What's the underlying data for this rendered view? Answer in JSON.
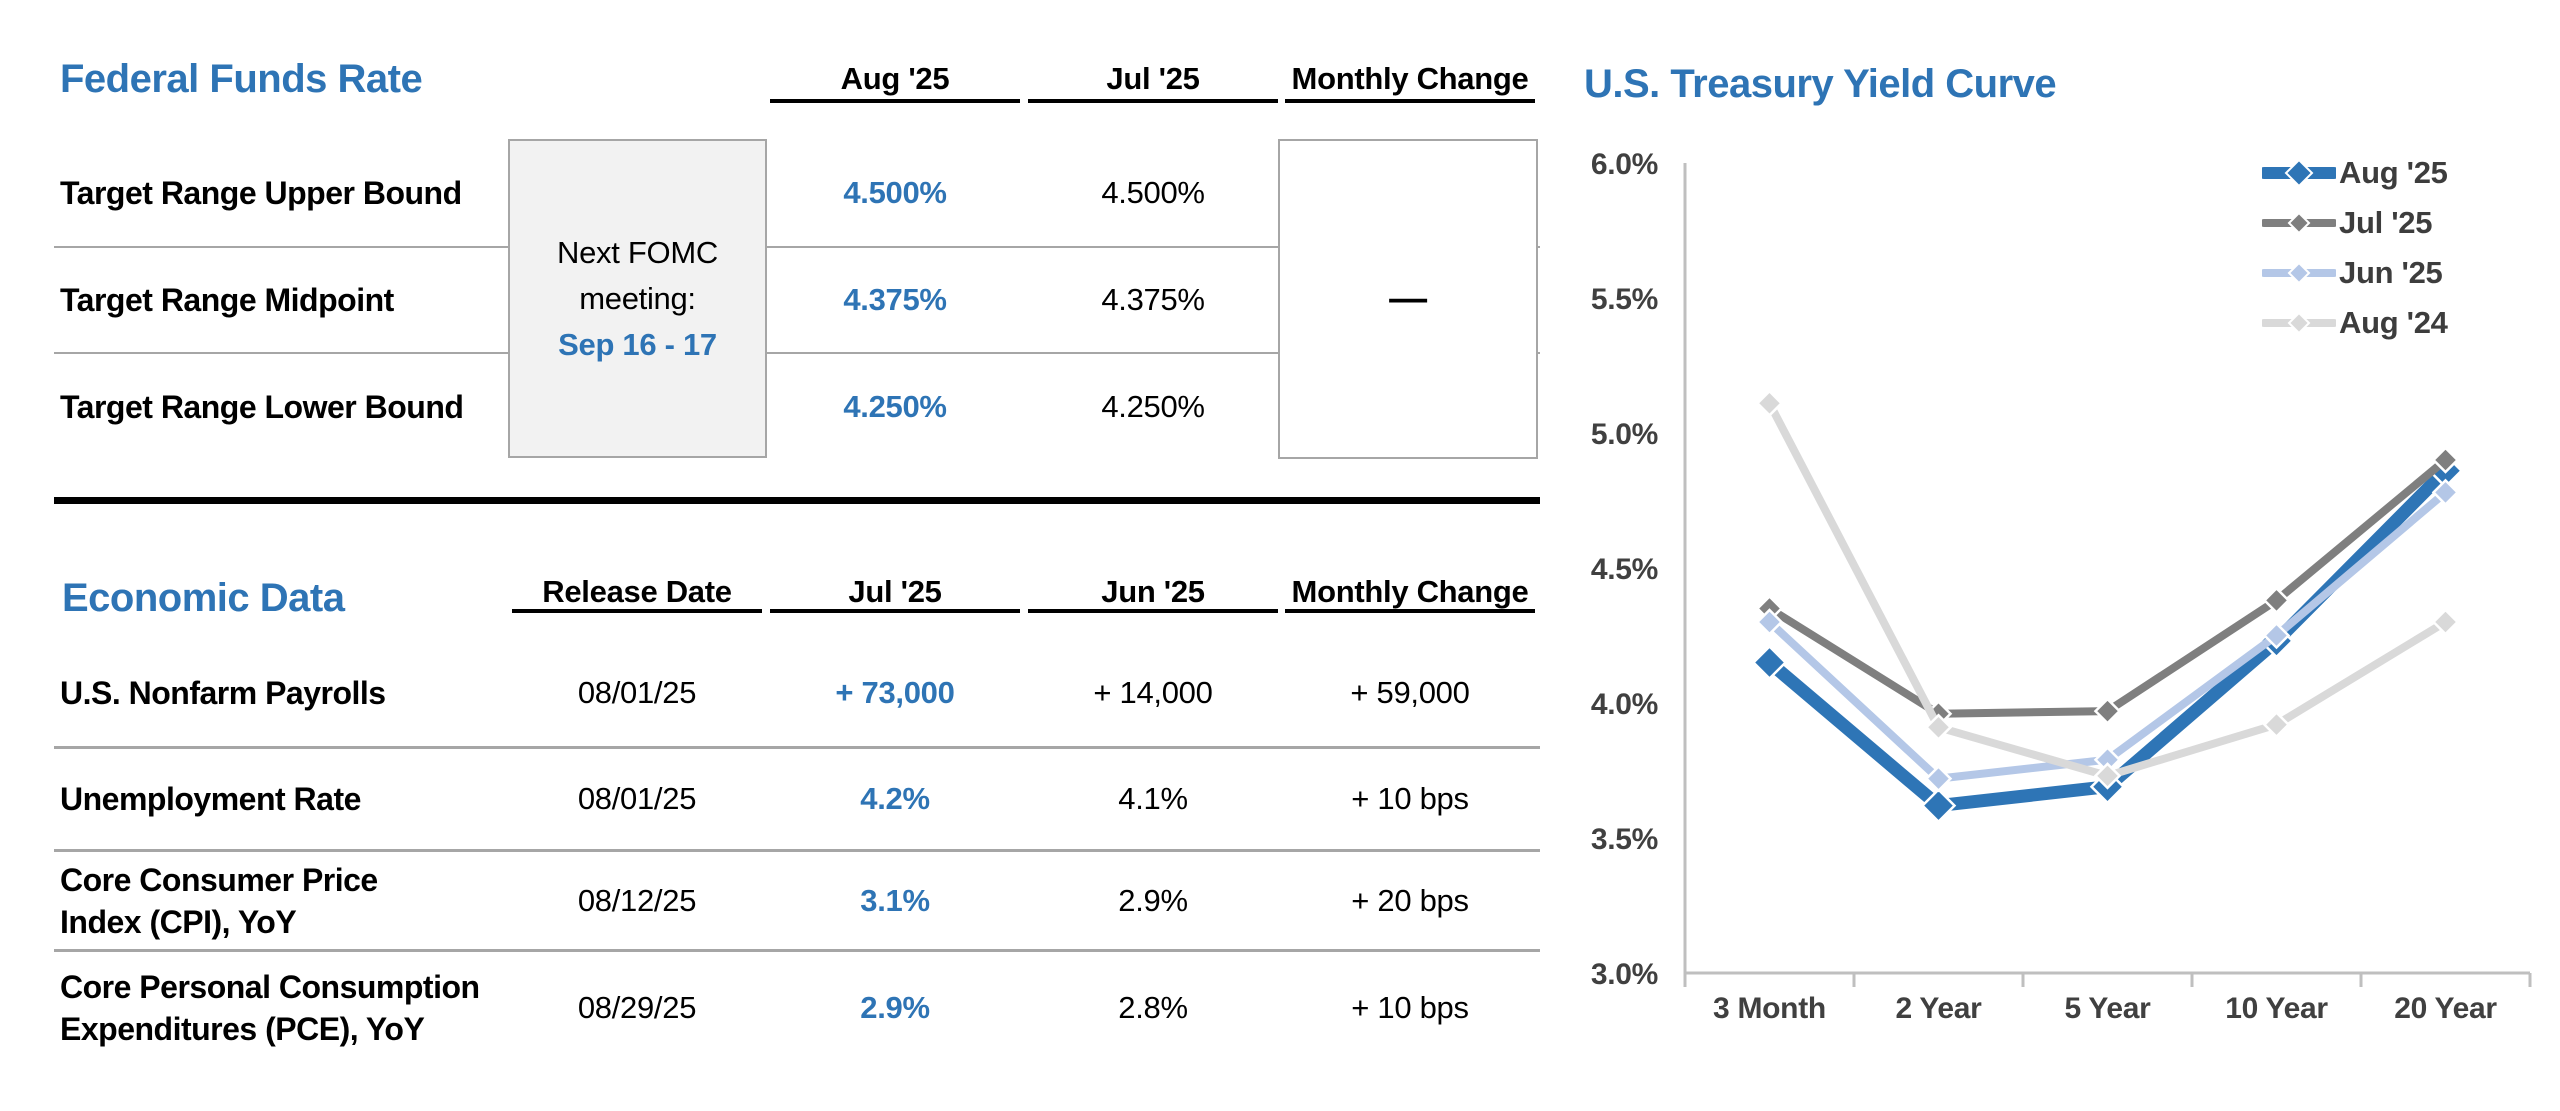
{
  "colors": {
    "accent_blue": "#2e74b5",
    "divider_gray": "#a6a6a6",
    "box_border": "#a6a6a6",
    "box_fill": "#f2f2f2",
    "axis_gray": "#bfbfbf",
    "tick_text": "#404040"
  },
  "fed_funds": {
    "title": "Federal Funds Rate",
    "columns": [
      "Aug '25",
      "Jul '25",
      "Monthly Change"
    ],
    "rows": [
      {
        "label": "Target Range Upper Bound",
        "aug25": "4.500%",
        "jul25": "4.500%"
      },
      {
        "label": "Target Range Midpoint",
        "aug25": "4.375%",
        "jul25": "4.375%"
      },
      {
        "label": "Target Range Lower Bound",
        "aug25": "4.250%",
        "jul25": "4.250%"
      }
    ],
    "monthly_change": "—",
    "fomc_note": {
      "line1": "Next FOMC",
      "line2": "meeting:",
      "dates": "Sep 16 - 17"
    }
  },
  "economic_data": {
    "title": "Economic Data",
    "columns": [
      "Release Date",
      "Jul '25",
      "Jun '25",
      "Monthly Change"
    ],
    "rows": [
      {
        "label": "U.S. Nonfarm Payrolls",
        "label2": "",
        "release": "08/01/25",
        "jul25": "+ 73,000",
        "jun25": "+ 14,000",
        "change": "+ 59,000"
      },
      {
        "label": "Unemployment Rate",
        "label2": "",
        "release": "08/01/25",
        "jul25": "4.2%",
        "jun25": "4.1%",
        "change": "+ 10 bps"
      },
      {
        "label": "Core Consumer Price",
        "label2": "Index (CPI), YoY",
        "release": "08/12/25",
        "jul25": "3.1%",
        "jun25": "2.9%",
        "change": "+ 20 bps"
      },
      {
        "label": "Core Personal Consumption",
        "label2": "Expenditures (PCE), YoY",
        "release": "08/29/25",
        "jul25": "2.9%",
        "jun25": "2.8%",
        "change": "+ 10 bps"
      }
    ]
  },
  "chart_data": {
    "type": "line",
    "title": "U.S. Treasury Yield Curve",
    "categories": [
      "3 Month",
      "2 Year",
      "5 Year",
      "10 Year",
      "20 Year"
    ],
    "series": [
      {
        "name": "Aug '25",
        "color": "#2e75b6",
        "values": [
          4.15,
          3.62,
          3.69,
          4.23,
          4.86
        ]
      },
      {
        "name": "Jul '25",
        "color": "#7f7f7f",
        "values": [
          4.35,
          3.96,
          3.97,
          4.38,
          4.9
        ]
      },
      {
        "name": "Jun '25",
        "color": "#b4c7e7",
        "values": [
          4.3,
          3.72,
          3.79,
          4.25,
          4.78
        ]
      },
      {
        "name": "Aug '24",
        "color": "#d9d9d9",
        "values": [
          5.11,
          3.91,
          3.73,
          3.92,
          4.3
        ]
      }
    ],
    "xlabel": "",
    "ylabel": "",
    "ylim": [
      3.0,
      6.0
    ],
    "ytick_step": 0.5,
    "ytick_format": "percent1",
    "grid": false,
    "legend_position": "top-right"
  }
}
